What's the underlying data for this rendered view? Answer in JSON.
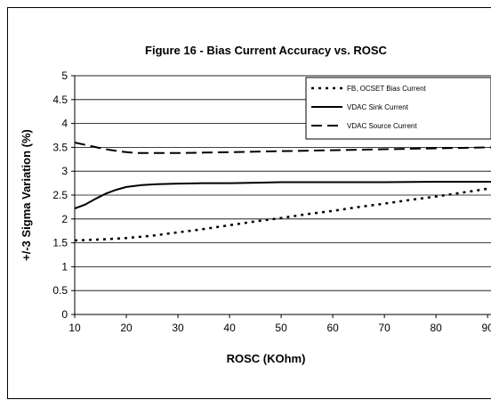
{
  "chart_data": {
    "type": "line",
    "title": "Figure 16 - Bias Current Accuracy vs. ROSC",
    "xlabel": "ROSC (KOhm)",
    "ylabel": "+/-3 Sigma Variation (%)",
    "xlim": [
      10,
      91
    ],
    "ylim": [
      0,
      5
    ],
    "xticks": [
      "10",
      "20",
      "30",
      "40",
      "50",
      "60",
      "70",
      "80",
      "90"
    ],
    "yticks": [
      "0",
      "0.5",
      "1",
      "1.5",
      "2",
      "2.5",
      "3",
      "3.5",
      "4",
      "4.5",
      "5"
    ],
    "grid": "horizontal",
    "legend_position": "top-right",
    "series": [
      {
        "name": "FB, OCSET Bias Current",
        "style": "dotted",
        "color": "#000000",
        "x": [
          10,
          15,
          20,
          25,
          30,
          35,
          40,
          45,
          50,
          55,
          60,
          65,
          70,
          75,
          80,
          85,
          91
        ],
        "y": [
          1.55,
          1.57,
          1.6,
          1.65,
          1.72,
          1.79,
          1.87,
          1.95,
          2.02,
          2.1,
          2.17,
          2.25,
          2.32,
          2.4,
          2.47,
          2.55,
          2.65
        ]
      },
      {
        "name": "VDAC Sink Current",
        "style": "solid",
        "color": "#000000",
        "x": [
          10,
          12,
          14,
          16,
          18,
          20,
          23,
          26,
          30,
          35,
          40,
          45,
          50,
          60,
          70,
          80,
          91
        ],
        "y": [
          2.22,
          2.3,
          2.42,
          2.53,
          2.61,
          2.67,
          2.71,
          2.73,
          2.74,
          2.75,
          2.75,
          2.76,
          2.77,
          2.77,
          2.77,
          2.78,
          2.78
        ]
      },
      {
        "name": "VDAC Source Current",
        "style": "dashed",
        "color": "#000000",
        "x": [
          10,
          13,
          16,
          19,
          22,
          26,
          30,
          35,
          40,
          50,
          60,
          70,
          80,
          91
        ],
        "y": [
          3.6,
          3.53,
          3.46,
          3.41,
          3.38,
          3.38,
          3.38,
          3.39,
          3.4,
          3.42,
          3.44,
          3.46,
          3.48,
          3.5
        ]
      }
    ]
  }
}
